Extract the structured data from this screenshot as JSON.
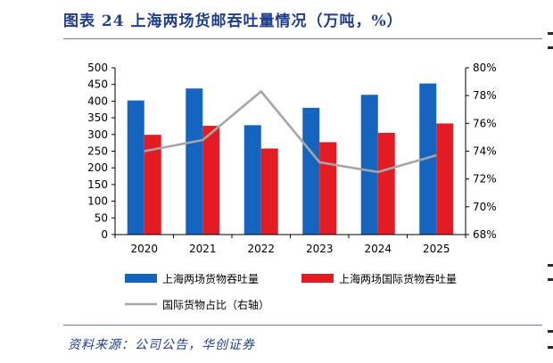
{
  "figure_title": "图表 24 上海两场货邮吞吐量情况（万吨，%）",
  "source_note": "资料来源：公司公告，华创证券",
  "colors": {
    "title": "#1f3e8c",
    "series_1": "#1565c0",
    "series_2": "#e31b23",
    "series_3": "#a6a6a6",
    "axis": "#000000"
  },
  "chart_data": {
    "type": "bar",
    "categories": [
      "2020",
      "2021",
      "2022",
      "2023",
      "2024",
      "2025"
    ],
    "left_axis": {
      "ylim": [
        0,
        500
      ],
      "ticks": [
        "0",
        "50",
        "100",
        "150",
        "200",
        "250",
        "300",
        "350",
        "400",
        "450",
        "500"
      ]
    },
    "right_axis": {
      "ylim": [
        68,
        80
      ],
      "ticks": [
        "68%",
        "70%",
        "72%",
        "74%",
        "76%",
        "78%",
        "80%"
      ]
    },
    "series": [
      {
        "name": "上海两场货物吞吐量",
        "kind": "bar",
        "axis": "left",
        "values": [
          402,
          438,
          328,
          380,
          419,
          453
        ]
      },
      {
        "name": "上海两场国际货物吞吐量",
        "kind": "bar",
        "axis": "left",
        "values": [
          299,
          326,
          258,
          277,
          305,
          333
        ]
      },
      {
        "name": "国际货物占比（右轴）",
        "kind": "line",
        "axis": "right",
        "values": [
          74.0,
          74.8,
          78.3,
          73.2,
          72.5,
          73.7
        ]
      }
    ],
    "legend_position": "bottom",
    "grid": false
  }
}
